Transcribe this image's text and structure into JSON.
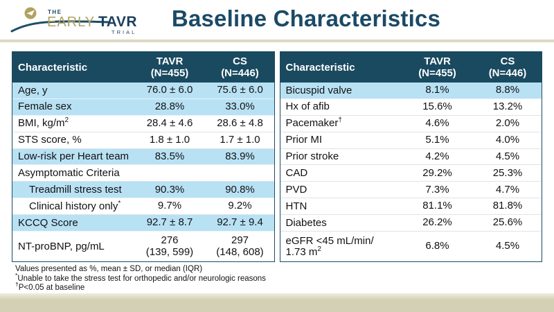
{
  "logo": {
    "the": "THE",
    "early": "EARLY",
    "tavr": "TAVR",
    "trial": "TRIAL"
  },
  "header": {
    "title": "Baseline Characteristics"
  },
  "columns": {
    "characteristic": "Characteristic",
    "tavr": "TAVR\n(N=455)",
    "cs": "CS\n(N=446)"
  },
  "table_left": {
    "rows": [
      {
        "label": "Age, y",
        "tavr": "76.0 ± 6.0",
        "cs": "75.6 ± 6.0",
        "hl": true
      },
      {
        "label": "Female sex",
        "tavr": "28.8%",
        "cs": "33.0%",
        "hl": true
      },
      {
        "label": "BMI, kg/m",
        "sup": "2",
        "tavr": "28.4 ± 4.6",
        "cs": "28.6 ± 4.8"
      },
      {
        "label": "STS score, %",
        "tavr": "1.8 ± 1.0",
        "cs": "1.7 ± 1.0"
      },
      {
        "label": "Low-risk per Heart team",
        "tavr": "83.5%",
        "cs": "83.9%",
        "hl": true
      },
      {
        "label": "Asymptomatic Criteria",
        "tavr": "",
        "cs": ""
      },
      {
        "label": "Treadmill stress test",
        "tavr": "90.3%",
        "cs": "90.8%",
        "hl": true,
        "indent": true
      },
      {
        "label": "Clinical history only",
        "sup": "*",
        "tavr": "9.7%",
        "cs": "9.2%",
        "indent": true
      },
      {
        "label": "KCCQ Score",
        "tavr": "92.7 ± 8.7",
        "cs": "92.7 ± 9.4",
        "hl": true
      },
      {
        "label": "NT-proBNP, pg/mL",
        "tavr": "276\n(139, 599)",
        "cs": "297\n(148, 608)",
        "tall": true
      }
    ]
  },
  "table_right": {
    "rows": [
      {
        "label": "Bicuspid valve",
        "tavr": "8.1%",
        "cs": "8.8%",
        "hl": true
      },
      {
        "label": "Hx of afib",
        "tavr": "15.6%",
        "cs": "13.2%"
      },
      {
        "label": "Pacemaker",
        "sup": "†",
        "tavr": "4.6%",
        "cs": "2.0%"
      },
      {
        "label": "Prior MI",
        "tavr": "5.1%",
        "cs": "4.0%"
      },
      {
        "label": "Prior stroke",
        "tavr": "4.2%",
        "cs": "4.5%"
      },
      {
        "label": "CAD",
        "tavr": "29.2%",
        "cs": "25.3%"
      },
      {
        "label": "PVD",
        "tavr": "7.3%",
        "cs": "4.7%"
      },
      {
        "label": "HTN",
        "tavr": "81.1%",
        "cs": "81.8%"
      },
      {
        "label": "Diabetes",
        "tavr": "26.2%",
        "cs": "25.6%"
      },
      {
        "label": "eGFR <45 mL/min/\n1.73 m",
        "sup": "2",
        "tavr": "6.8%",
        "cs": "4.5%",
        "tall": true
      }
    ]
  },
  "footnotes": [
    {
      "sup": "",
      "text": "Values presented as %, mean ± SD, or median (IQR)"
    },
    {
      "sup": "*",
      "text": "Unable to take the stress test for orthopedic and/or neurologic reasons"
    },
    {
      "sup": "†",
      "text": "P<0.05 at baseline"
    }
  ],
  "colors": {
    "header_bg": "#1A4A60",
    "row_highlight": "#B8E1F4",
    "title_text": "#1B4A66",
    "logo_gold": "#AFA163",
    "logo_navy": "#1B3F5E",
    "divider_beige": "#DCD8C2",
    "bottom_band": "#D4D0B5"
  }
}
